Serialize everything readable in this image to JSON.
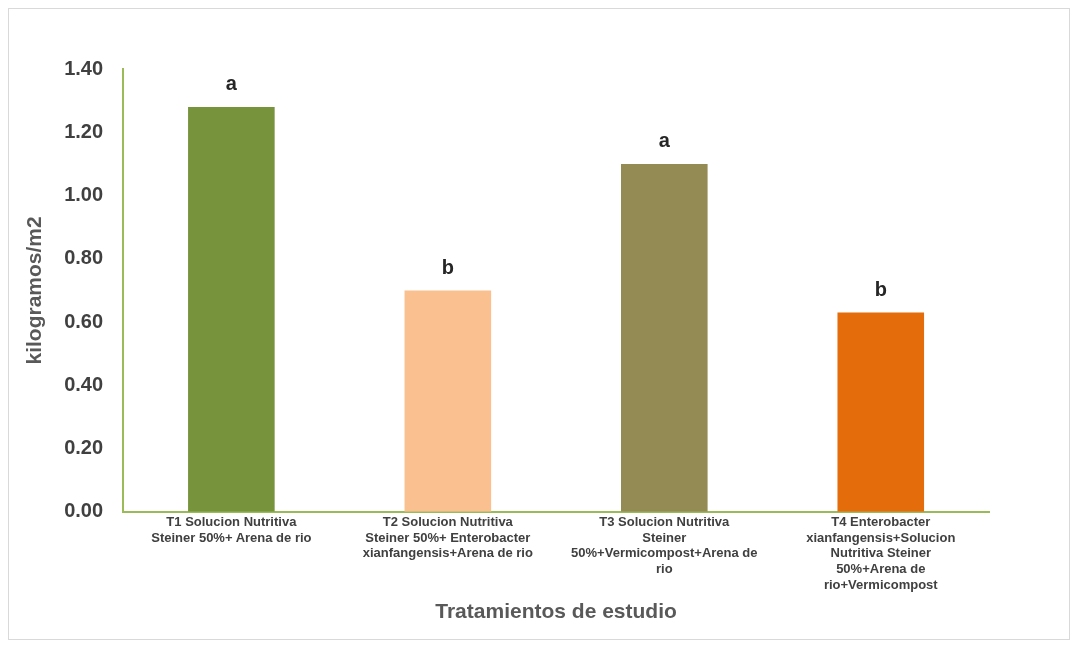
{
  "chart_data": {
    "type": "bar",
    "categories": [
      "T1 Solucion Nutritiva Steiner 50%+ Arena de rio",
      "T2 Solucion Nutritiva Steiner 50%+ Enterobacter xianfangensis+Arena de rio",
      "T3 Solucion Nutritiva Steiner 50%+Vermicompost+Arena de rio",
      "T4 Enterobacter xianfangensis+Solucion Nutritiva Steiner 50%+Arena de rio+Vermicompost"
    ],
    "values": [
      1.28,
      0.7,
      1.1,
      0.63
    ],
    "colors": [
      "#77933c",
      "#fac090",
      "#948a54",
      "#e46c0a"
    ],
    "xlabel": "Tratamientos de estudio",
    "ylabel": "kilogramos/m2",
    "ylim": [
      0,
      1.4
    ],
    "yticks": [
      {
        "value": 0,
        "label": "0.00"
      },
      {
        "value": 0.2,
        "label": "0.20"
      },
      {
        "value": 0.4,
        "label": "0.40"
      },
      {
        "value": 0.6,
        "label": "0.60"
      },
      {
        "value": 0.8,
        "label": "0.80"
      },
      {
        "value": 1,
        "label": "1.00"
      },
      {
        "value": 1.2,
        "label": "1.20"
      },
      {
        "value": 1.4,
        "label": "1.40"
      }
    ],
    "grid": false,
    "legend": false,
    "annotations": [
      {
        "text": "a",
        "x": "T1 Solucion Nutritiva Steiner 50%+ Arena de rio",
        "y": 1.28
      },
      {
        "text": "b",
        "x": "T2 Solucion Nutritiva Steiner 50%+ Enterobacter xianfangensis+Arena de rio",
        "y": 0.7
      },
      {
        "text": "a",
        "x": "T3 Solucion Nutritiva Steiner 50%+Vermicompost+Arena de rio",
        "y": 1.1
      },
      {
        "text": "b",
        "x": "T4 Enterobacter xianfangensis+Solucion Nutritiva Steiner 50%+Arena de rio+Vermicompost",
        "y": 0.63
      }
    ]
  }
}
